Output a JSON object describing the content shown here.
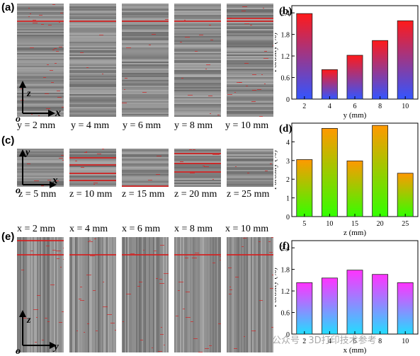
{
  "panels": {
    "a": {
      "label": "(a)",
      "captions": [
        "y = 2 mm",
        "y = 4 mm",
        "y = 6 mm",
        "y = 8 mm",
        "y = 10 mm"
      ],
      "axis_v": "z",
      "axis_h": "x",
      "origin": "o"
    },
    "c": {
      "label": "(c)",
      "captions": [
        "z = 5 mm",
        "z = 10 mm",
        "z = 15 mm",
        "z = 20 mm",
        "z = 25 mm"
      ],
      "axis_v": "y",
      "axis_h": "x",
      "origin": "o"
    },
    "e": {
      "label": "(e)",
      "captions": [
        "x = 2 mm",
        "x = 4 mm",
        "x = 6 mm",
        "x = 8 mm",
        "x = 10 mm"
      ],
      "axis_v": "z",
      "axis_h": "y",
      "origin": "o"
    }
  },
  "watermark": "公众号 · 3D打印技术参考",
  "chart_data": [
    {
      "panel": "(b)",
      "type": "bar",
      "categories": [
        "2",
        "4",
        "6",
        "8",
        "10"
      ],
      "values": [
        2.38,
        0.82,
        1.22,
        1.63,
        2.18
      ],
      "xlabel": "y (mm)",
      "ylabel": "Porosity (%)",
      "ylim": [
        0,
        2.6
      ],
      "yticks": [
        "0",
        "0.6",
        "1.2",
        "1.8",
        "2.4"
      ],
      "gradient": {
        "top": "#ff1a1a",
        "bottom": "#3355ff"
      }
    },
    {
      "panel": "(d)",
      "type": "bar",
      "categories": [
        "5",
        "10",
        "15",
        "20",
        "25"
      ],
      "values": [
        3.05,
        4.72,
        2.98,
        4.88,
        2.32
      ],
      "xlabel": "z (mm)",
      "ylabel": "Porosity (%)",
      "ylim": [
        0,
        5
      ],
      "yticks": [
        "0",
        "1",
        "2",
        "3",
        "4"
      ],
      "gradient": {
        "top": "#ff9900",
        "bottom": "#33ff00"
      }
    },
    {
      "panel": "(f)",
      "type": "bar",
      "categories": [
        "2",
        "4",
        "6",
        "8",
        "10"
      ],
      "values": [
        1.43,
        1.56,
        1.78,
        1.66,
        1.43
      ],
      "xlabel": "x (mm)",
      "ylabel": "Porosity (%)",
      "ylim": [
        0,
        2.6
      ],
      "yticks": [
        "0",
        "0.6",
        "1.2",
        "1.8",
        "2.4"
      ],
      "gradient": {
        "top": "#ff33ff",
        "bottom": "#22ddff"
      }
    }
  ]
}
